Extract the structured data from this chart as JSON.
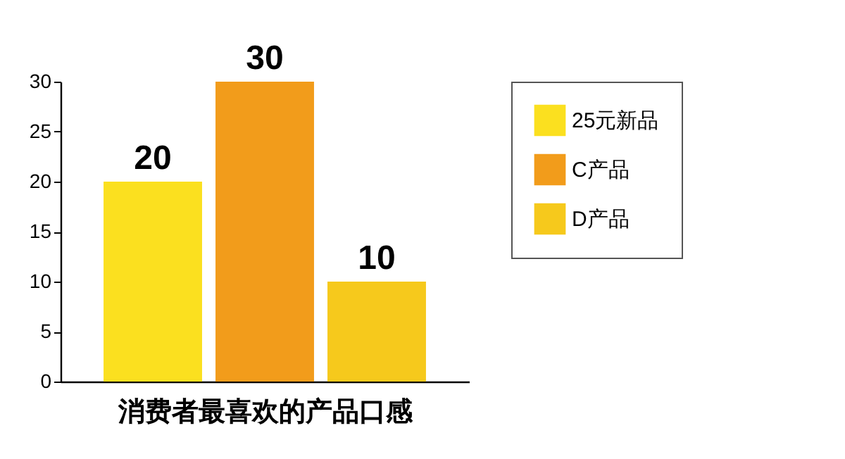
{
  "chart_data": {
    "type": "bar",
    "xlabel": "消费者最喜欢的产品口感",
    "categories": [
      null
    ],
    "series": [
      {
        "name": "25元新品",
        "color": "#fbe01f",
        "values": [
          20
        ]
      },
      {
        "name": "C产品",
        "color": "#f29c1b",
        "values": [
          30
        ]
      },
      {
        "name": "D产品",
        "color": "#f6c91c",
        "values": [
          10
        ]
      }
    ],
    "ylim": [
      0,
      30
    ],
    "yticks": [
      0,
      5,
      10,
      15,
      20,
      25,
      30
    ],
    "grid": false,
    "legend": "right",
    "tick_labels": "y",
    "data_labels": true
  }
}
